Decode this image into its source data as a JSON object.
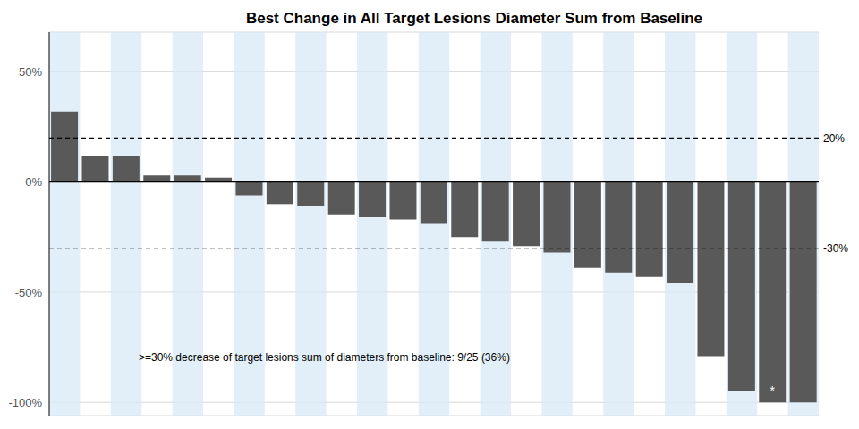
{
  "chart_data": {
    "type": "bar",
    "title": "Best Change in All Target Lesions Diameter Sum from Baseline",
    "categories": [
      null,
      null,
      null,
      null,
      null,
      null,
      null,
      null,
      null,
      null,
      null,
      null,
      null,
      null,
      null,
      null,
      null,
      null,
      null,
      null,
      null,
      null,
      null,
      null,
      null
    ],
    "values": [
      32,
      12,
      12,
      3,
      3,
      2,
      -6,
      -10,
      -11,
      -15,
      -16,
      -17,
      -19,
      -25,
      -27,
      -29,
      -32,
      -39,
      -41,
      -43,
      -46,
      -79,
      -95,
      -100,
      -100
    ],
    "color": "#595959",
    "ylim": [
      -106,
      68
    ],
    "yticks": [
      {
        "value": -100,
        "label": "-100%"
      },
      {
        "value": -50,
        "label": "-50%"
      },
      {
        "value": 0,
        "label": "0%"
      },
      {
        "value": 50,
        "label": "50%"
      }
    ],
    "grid": true,
    "tick_labels": "y",
    "reference_lines": [
      {
        "value": 20,
        "label": "20%"
      },
      {
        "value": -30,
        "label": "-30%"
      }
    ],
    "annotations": [
      {
        "text": ">=30% decrease of target lesions sum of diameters from baseline: 9/25 (36%)"
      },
      {
        "text": "*",
        "index": 23
      }
    ]
  }
}
